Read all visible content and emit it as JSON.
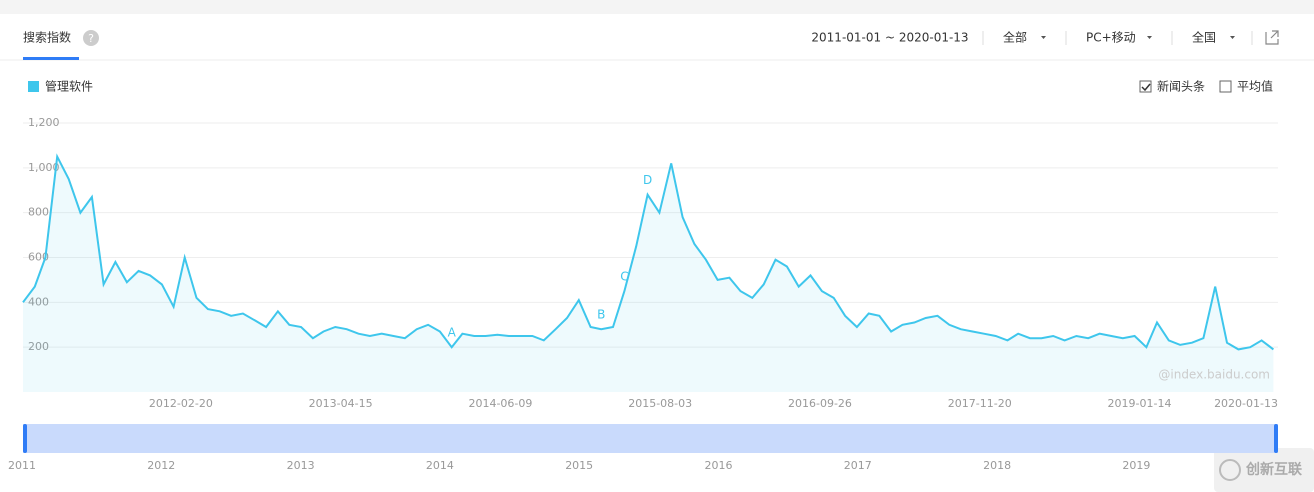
{
  "header": {
    "tab": "搜索指数",
    "help": "?",
    "date_range": "2011-01-01 ~ 2020-01-13",
    "filters": [
      "全部",
      "PC+移动",
      "全国"
    ]
  },
  "options": [
    {
      "label": "新闻头条",
      "checked": true
    },
    {
      "label": "平均值",
      "checked": false
    }
  ],
  "chart_data": {
    "type": "line",
    "x": [
      "2011-01-01",
      "2011-02-01",
      "2011-03-01",
      "2011-04-01",
      "2011-05-01",
      "2011-06-01",
      "2011-07-01",
      "2011-08-01",
      "2011-09-01",
      "2011-10-01",
      "2011-11-01",
      "2011-12-01",
      "2012-01-01",
      "2012-02-01",
      "2012-03-01",
      "2012-04-01",
      "2012-05-01",
      "2012-06-01",
      "2012-07-01",
      "2012-08-01",
      "2012-09-01",
      "2012-10-01",
      "2012-11-01",
      "2012-12-01",
      "2013-01-01",
      "2013-02-01",
      "2013-03-01",
      "2013-04-01",
      "2013-05-01",
      "2013-06-01",
      "2013-07-01",
      "2013-08-01",
      "2013-09-01",
      "2013-10-01",
      "2013-11-01",
      "2013-12-01",
      "2014-01-01",
      "2014-02-01",
      "2014-03-01",
      "2014-04-01",
      "2014-05-01",
      "2014-06-01",
      "2014-07-01",
      "2014-08-01",
      "2014-09-01",
      "2014-10-01",
      "2014-11-01",
      "2014-12-01",
      "2015-01-01",
      "2015-02-01",
      "2015-03-01",
      "2015-04-01",
      "2015-05-01",
      "2015-06-01",
      "2015-07-01",
      "2015-08-01",
      "2015-09-01",
      "2015-10-01",
      "2015-11-01",
      "2015-12-01",
      "2016-01-01",
      "2016-02-01",
      "2016-03-01",
      "2016-04-01",
      "2016-05-01",
      "2016-06-01",
      "2016-07-01",
      "2016-08-01",
      "2016-09-01",
      "2016-10-01",
      "2016-11-01",
      "2016-12-01",
      "2017-01-01",
      "2017-02-01",
      "2017-03-01",
      "2017-04-01",
      "2017-05-01",
      "2017-06-01",
      "2017-07-01",
      "2017-08-01",
      "2017-09-01",
      "2017-10-01",
      "2017-11-01",
      "2017-12-01",
      "2018-01-01",
      "2018-02-01",
      "2018-03-01",
      "2018-04-01",
      "2018-05-01",
      "2018-06-01",
      "2018-07-01",
      "2018-08-01",
      "2018-09-01",
      "2018-10-01",
      "2018-11-01",
      "2018-12-01",
      "2019-01-01",
      "2019-02-01",
      "2019-03-01",
      "2019-04-01",
      "2019-05-01",
      "2019-06-01",
      "2019-07-01",
      "2019-08-01",
      "2019-09-01",
      "2019-10-01",
      "2019-11-01",
      "2019-12-01",
      "2020-01-01"
    ],
    "series": [
      {
        "name": "管理软件",
        "color": "#3ec6ec",
        "values": [
          400,
          470,
          600,
          1050,
          950,
          800,
          870,
          480,
          580,
          490,
          540,
          520,
          480,
          380,
          600,
          420,
          370,
          360,
          340,
          350,
          320,
          290,
          360,
          300,
          290,
          240,
          270,
          290,
          280,
          260,
          250,
          260,
          250,
          240,
          280,
          300,
          270,
          200,
          260,
          250,
          250,
          255,
          250,
          250,
          250,
          230,
          280,
          330,
          410,
          290,
          280,
          290,
          450,
          650,
          880,
          800,
          1020,
          780,
          660,
          590,
          500,
          510,
          450,
          420,
          480,
          590,
          560,
          470,
          520,
          450,
          420,
          340,
          290,
          350,
          340,
          270,
          300,
          310,
          330,
          340,
          300,
          280,
          270,
          260,
          250,
          230,
          260,
          240,
          240,
          250,
          230,
          250,
          240,
          260,
          250,
          240,
          250,
          200,
          310,
          230,
          210,
          220,
          240,
          470,
          220,
          190,
          200,
          230,
          190
        ]
      }
    ],
    "xlim": [
      "2011-01-01",
      "2020-01-13"
    ],
    "xticks": [
      "2012-02-20",
      "2013-04-15",
      "2014-06-09",
      "2015-08-03",
      "2016-09-26",
      "2017-11-20",
      "2019-01-14",
      "2020-01-13"
    ],
    "ylim": [
      0,
      1200
    ],
    "yticks": [
      200,
      400,
      600,
      800,
      {
        "value": 1000,
        "label": "1,000"
      },
      {
        "value": 1200,
        "label": "1,200"
      }
    ],
    "grid": true,
    "annotations": [
      {
        "text": "A",
        "x": "2014-02-01"
      },
      {
        "text": "B",
        "x": "2015-03-01"
      },
      {
        "text": "C",
        "x": "2015-05-01"
      },
      {
        "text": "D",
        "x": "2015-07-01"
      }
    ],
    "watermark": "@index.baidu.com"
  },
  "slider": {
    "years": [
      "2011",
      "2012",
      "2013",
      "2014",
      "2015",
      "2016",
      "2017",
      "2018",
      "2019"
    ]
  },
  "logo": "创新互联"
}
